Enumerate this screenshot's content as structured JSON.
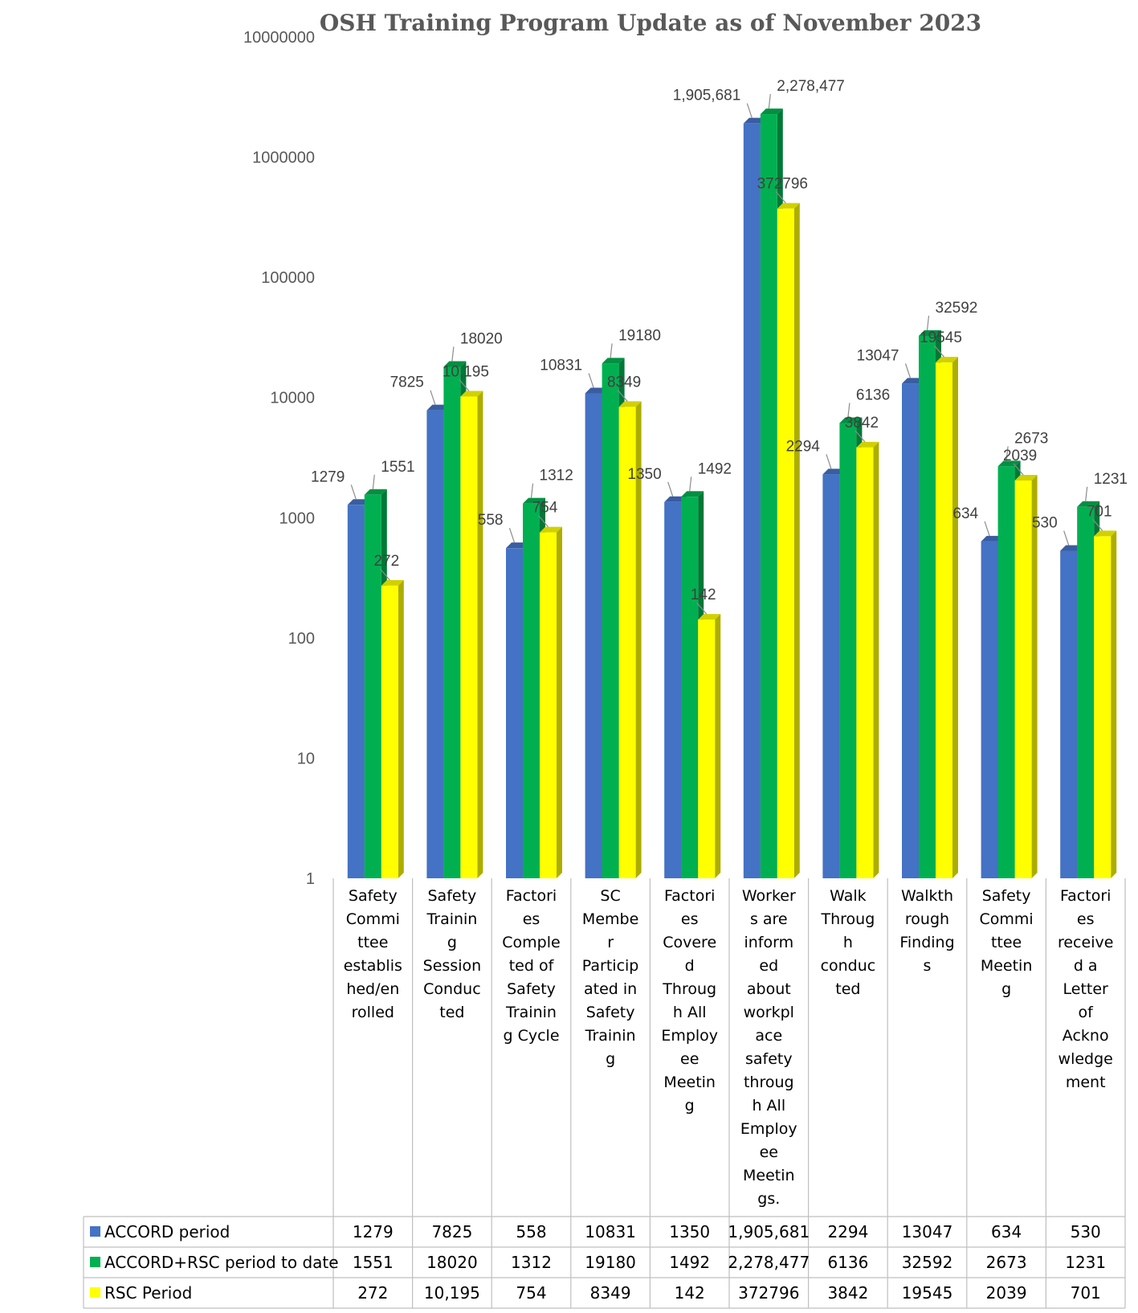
{
  "chart_data": {
    "type": "bar",
    "title": "OSH Training Program Update as of  November 2023",
    "y_scale": "log",
    "ylim": [
      1,
      10000000
    ],
    "yticks": [
      "1",
      "10",
      "100",
      "1000",
      "10000",
      "100000",
      "1000000",
      "10000000"
    ],
    "grid": false,
    "legend": "data table (left of rows)",
    "categories": [
      [
        "Safety",
        "Commi",
        "ttee",
        "establis",
        "hed/en",
        "rolled"
      ],
      [
        "Safety",
        "Trainin",
        "g",
        "Session",
        "Conduc",
        "ted"
      ],
      [
        "Factori",
        "es",
        "Comple",
        "ted of",
        "Safety",
        "Trainin",
        "g Cycle"
      ],
      [
        "SC",
        "Membe",
        "r",
        "Particip",
        "ated in",
        "Safety",
        "Trainin",
        "g"
      ],
      [
        "Factori",
        "es",
        "Covere",
        "d",
        "Throug",
        "h All",
        "Employ",
        "ee",
        "Meetin",
        "g"
      ],
      [
        "Worker",
        "s are",
        "inform",
        "ed",
        "about",
        "workpl",
        "ace",
        "safety",
        "throug",
        "h All",
        "Employ",
        "ee",
        "Meetin",
        "gs."
      ],
      [
        "Walk",
        "Throug",
        "h",
        "conduc",
        "ted"
      ],
      [
        "Walkth",
        "rough",
        "Finding",
        "s"
      ],
      [
        "Safety",
        "Commi",
        "ttee",
        "Meetin",
        "g"
      ],
      [
        "Factori",
        "es",
        "receive",
        "d a",
        "Letter",
        "of",
        "Ackno",
        "wledge",
        "ment"
      ]
    ],
    "series": [
      {
        "name": "ACCORD period",
        "color": "#4472C4",
        "values": [
          1279,
          7825,
          558,
          10831,
          1350,
          1905681,
          2294,
          13047,
          634,
          530
        ],
        "labels": [
          "1279",
          "7825",
          "558",
          "10831",
          "1350",
          "1,905,681",
          "2294",
          "13047",
          "634",
          "530"
        ]
      },
      {
        "name": "ACCORD+RSC period to date",
        "color": "#00B050",
        "values": [
          1551,
          18020,
          1312,
          19180,
          1492,
          2278477,
          6136,
          32592,
          2673,
          1231
        ],
        "labels": [
          "1551",
          "18020",
          "1312",
          "19180",
          "1492",
          "2,278,477",
          "6136",
          "32592",
          "2673",
          "1231"
        ]
      },
      {
        "name": "RSC Period",
        "color": "#FFFF00",
        "values": [
          272,
          10195,
          754,
          8349,
          142,
          372796,
          3842,
          19545,
          2039,
          701
        ],
        "labels": [
          "272",
          "10,195",
          "754",
          "8349",
          "142",
          "372796",
          "3842",
          "19545",
          "2039",
          "701"
        ]
      }
    ]
  }
}
